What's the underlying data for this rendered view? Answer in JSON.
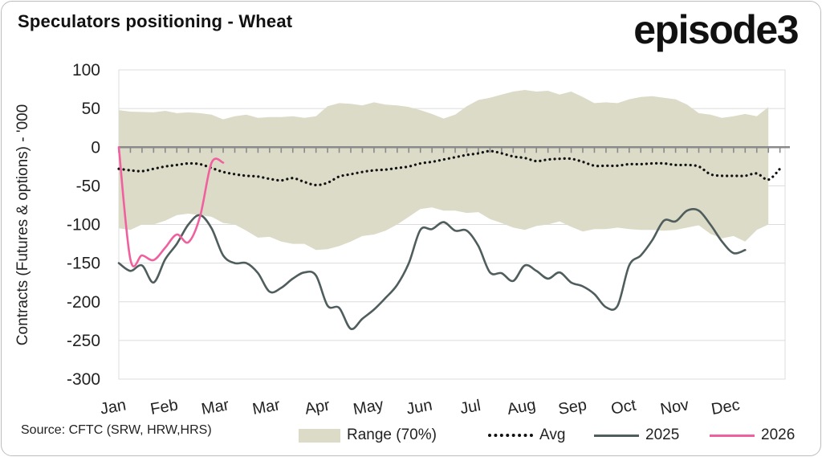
{
  "title": "Speculators positioning - Wheat",
  "brand": "episode3",
  "source": "Source: CFTC (SRW, HRW,HRS)",
  "colors": {
    "range": "#dcdbc8",
    "avg": "#111111",
    "y2025": "#4f5d5d",
    "y2026": "#f0609e",
    "grid": "#dcdcdc",
    "axis": "#8a8a8a"
  },
  "chart_data": {
    "type": "line",
    "title": "Speculators positioning - Wheat",
    "ylabel": "Contracts (Futures & options) - '000",
    "xlabel": "",
    "ylim": [
      -300,
      100
    ],
    "yticks": [
      100,
      50,
      0,
      -50,
      -100,
      -150,
      -200,
      -250,
      -300
    ],
    "week_count": 53,
    "xtick_labels": [
      {
        "label": "Jan",
        "week": 0
      },
      {
        "label": "Feb",
        "week": 4.4
      },
      {
        "label": "Mar",
        "week": 8.8
      },
      {
        "label": "Mar",
        "week": 13.2
      },
      {
        "label": "Apr",
        "week": 17.6
      },
      {
        "label": "May",
        "week": 22.0
      },
      {
        "label": "Jun",
        "week": 26.4
      },
      {
        "label": "Jul",
        "week": 30.8
      },
      {
        "label": "Aug",
        "week": 35.2
      },
      {
        "label": "Sep",
        "week": 39.6
      },
      {
        "label": "Oct",
        "week": 44.0
      },
      {
        "label": "Nov",
        "week": 48.4
      },
      {
        "label": "Dec",
        "week": 52.8
      }
    ],
    "series": [
      {
        "name": "Range (70%)",
        "kind": "band",
        "upper": [
          [
            0,
            48
          ],
          [
            1,
            46
          ],
          [
            3,
            45
          ],
          [
            4,
            47
          ],
          [
            5,
            44
          ],
          [
            6,
            45
          ],
          [
            7,
            44
          ],
          [
            8,
            42
          ],
          [
            9,
            36
          ],
          [
            10,
            40
          ],
          [
            11,
            42
          ],
          [
            12,
            38
          ],
          [
            13,
            39
          ],
          [
            14,
            39
          ],
          [
            15,
            40
          ],
          [
            16,
            38
          ],
          [
            17,
            40
          ],
          [
            18,
            53
          ],
          [
            19,
            57
          ],
          [
            20,
            56
          ],
          [
            21,
            54
          ],
          [
            22,
            58
          ],
          [
            23,
            55
          ],
          [
            24,
            54
          ],
          [
            25,
            52
          ],
          [
            26,
            48
          ],
          [
            27,
            43
          ],
          [
            28,
            37
          ],
          [
            29,
            42
          ],
          [
            30,
            53
          ],
          [
            31,
            61
          ],
          [
            32,
            64
          ],
          [
            33,
            68
          ],
          [
            34,
            72
          ],
          [
            35,
            74
          ],
          [
            36,
            72
          ],
          [
            37,
            73
          ],
          [
            38,
            68
          ],
          [
            39,
            72
          ],
          [
            40,
            65
          ],
          [
            41,
            57
          ],
          [
            42,
            58
          ],
          [
            43,
            57
          ],
          [
            44,
            62
          ],
          [
            45,
            65
          ],
          [
            46,
            66
          ],
          [
            47,
            64
          ],
          [
            48,
            62
          ],
          [
            49,
            55
          ],
          [
            50,
            44
          ],
          [
            51,
            42
          ],
          [
            52,
            38
          ],
          [
            53,
            40
          ],
          [
            54,
            43
          ],
          [
            55,
            40
          ],
          [
            56,
            52
          ]
        ],
        "lower": [
          [
            0,
            -105
          ],
          [
            1,
            -107
          ],
          [
            2,
            -100
          ],
          [
            3,
            -100
          ],
          [
            4,
            -95
          ],
          [
            5,
            -88
          ],
          [
            6,
            -86
          ],
          [
            7,
            -88
          ],
          [
            8,
            -90
          ],
          [
            9,
            -98
          ],
          [
            10,
            -100
          ],
          [
            11,
            -108
          ],
          [
            12,
            -117
          ],
          [
            13,
            -116
          ],
          [
            14,
            -122
          ],
          [
            15,
            -125
          ],
          [
            16,
            -125
          ],
          [
            17,
            -133
          ],
          [
            18,
            -132
          ],
          [
            19,
            -128
          ],
          [
            20,
            -122
          ],
          [
            21,
            -115
          ],
          [
            22,
            -113
          ],
          [
            23,
            -108
          ],
          [
            24,
            -100
          ],
          [
            25,
            -90
          ],
          [
            26,
            -80
          ],
          [
            27,
            -78
          ],
          [
            28,
            -82
          ],
          [
            29,
            -82
          ],
          [
            30,
            -85
          ],
          [
            31,
            -84
          ],
          [
            32,
            -93
          ],
          [
            33,
            -98
          ],
          [
            34,
            -104
          ],
          [
            35,
            -107
          ],
          [
            36,
            -102
          ],
          [
            37,
            -100
          ],
          [
            38,
            -96
          ],
          [
            39,
            -103
          ],
          [
            40,
            -109
          ],
          [
            41,
            -106
          ],
          [
            42,
            -106
          ],
          [
            43,
            -104
          ],
          [
            44,
            -106
          ],
          [
            45,
            -107
          ],
          [
            46,
            -107
          ],
          [
            47,
            -108
          ],
          [
            48,
            -107
          ],
          [
            49,
            -104
          ],
          [
            50,
            -101
          ],
          [
            51,
            -112
          ],
          [
            52,
            -118
          ],
          [
            53,
            -115
          ],
          [
            54,
            -122
          ],
          [
            55,
            -107
          ],
          [
            56,
            -100
          ]
        ]
      },
      {
        "name": "Avg",
        "kind": "dotted",
        "points": [
          [
            0,
            -28
          ],
          [
            1,
            -30
          ],
          [
            2,
            -31
          ],
          [
            3,
            -28
          ],
          [
            4,
            -25
          ],
          [
            5,
            -23
          ],
          [
            6,
            -21
          ],
          [
            7,
            -22
          ],
          [
            8,
            -27
          ],
          [
            9,
            -32
          ],
          [
            10,
            -35
          ],
          [
            11,
            -37
          ],
          [
            12,
            -38
          ],
          [
            13,
            -41
          ],
          [
            14,
            -43
          ],
          [
            15,
            -40
          ],
          [
            16,
            -45
          ],
          [
            17,
            -49
          ],
          [
            18,
            -46
          ],
          [
            19,
            -38
          ],
          [
            20,
            -35
          ],
          [
            21,
            -32
          ],
          [
            22,
            -30
          ],
          [
            23,
            -29
          ],
          [
            24,
            -27
          ],
          [
            25,
            -25
          ],
          [
            26,
            -21
          ],
          [
            27,
            -19
          ],
          [
            28,
            -16
          ],
          [
            29,
            -13
          ],
          [
            30,
            -10
          ],
          [
            31,
            -8
          ],
          [
            32,
            -5
          ],
          [
            33,
            -8
          ],
          [
            34,
            -12
          ],
          [
            35,
            -14
          ],
          [
            36,
            -18
          ],
          [
            37,
            -16
          ],
          [
            38,
            -15
          ],
          [
            39,
            -15
          ],
          [
            40,
            -19
          ],
          [
            41,
            -24
          ],
          [
            42,
            -24
          ],
          [
            43,
            -24
          ],
          [
            44,
            -22
          ],
          [
            45,
            -22
          ],
          [
            46,
            -21
          ],
          [
            47,
            -21
          ],
          [
            48,
            -23
          ],
          [
            49,
            -23
          ],
          [
            50,
            -25
          ],
          [
            51,
            -35
          ],
          [
            52,
            -37
          ],
          [
            53,
            -37
          ],
          [
            54,
            -37
          ],
          [
            55,
            -34
          ],
          [
            56,
            -42
          ],
          [
            57,
            -28
          ]
        ]
      },
      {
        "name": "2025",
        "kind": "line",
        "points": [
          [
            0,
            -150
          ],
          [
            1,
            -160
          ],
          [
            2,
            -153
          ],
          [
            3,
            -175
          ],
          [
            4,
            -145
          ],
          [
            5,
            -125
          ],
          [
            6,
            -100
          ],
          [
            7,
            -88
          ],
          [
            8,
            -105
          ],
          [
            9,
            -140
          ],
          [
            10,
            -150
          ],
          [
            11,
            -150
          ],
          [
            12,
            -163
          ],
          [
            13,
            -187
          ],
          [
            14,
            -182
          ],
          [
            15,
            -170
          ],
          [
            16,
            -162
          ],
          [
            17,
            -166
          ],
          [
            18,
            -205
          ],
          [
            19,
            -208
          ],
          [
            20,
            -235
          ],
          [
            21,
            -222
          ],
          [
            22,
            -210
          ],
          [
            23,
            -195
          ],
          [
            24,
            -178
          ],
          [
            25,
            -150
          ],
          [
            26,
            -107
          ],
          [
            27,
            -106
          ],
          [
            28,
            -97
          ],
          [
            29,
            -108
          ],
          [
            30,
            -108
          ],
          [
            31,
            -128
          ],
          [
            32,
            -162
          ],
          [
            33,
            -163
          ],
          [
            34,
            -173
          ],
          [
            35,
            -153
          ],
          [
            36,
            -160
          ],
          [
            37,
            -170
          ],
          [
            38,
            -162
          ],
          [
            39,
            -175
          ],
          [
            40,
            -180
          ],
          [
            41,
            -190
          ],
          [
            42,
            -207
          ],
          [
            43,
            -205
          ],
          [
            44,
            -153
          ],
          [
            45,
            -140
          ],
          [
            46,
            -120
          ],
          [
            47,
            -95
          ],
          [
            48,
            -96
          ],
          [
            49,
            -82
          ],
          [
            50,
            -82
          ],
          [
            51,
            -100
          ],
          [
            52,
            -122
          ],
          [
            53,
            -137
          ],
          [
            54,
            -133
          ]
        ]
      },
      {
        "name": "2026",
        "kind": "line",
        "points": [
          [
            0,
            0
          ],
          [
            1,
            -145
          ],
          [
            2,
            -140
          ],
          [
            3,
            -146
          ],
          [
            4,
            -130
          ],
          [
            5,
            -113
          ],
          [
            6,
            -123
          ],
          [
            7,
            -90
          ],
          [
            8,
            -20
          ],
          [
            9,
            -20
          ]
        ]
      }
    ],
    "legend": [
      {
        "label": "Range (70%)",
        "kind": "band"
      },
      {
        "label": "Avg",
        "kind": "dotted"
      },
      {
        "label": "2025",
        "kind": "line"
      },
      {
        "label": "2026",
        "kind": "line"
      }
    ],
    "legend_position": "bottom",
    "grid": true
  }
}
